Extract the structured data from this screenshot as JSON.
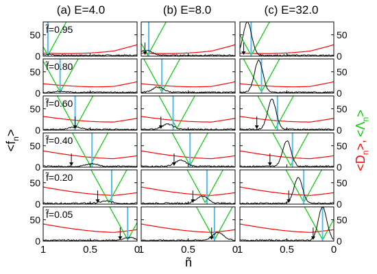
{
  "chart_data": {
    "type": "line",
    "column_titles": [
      "(a) E=4.0",
      "(b) E=8.0",
      "(c) E=32.0"
    ],
    "row_labels": [
      "f̃=0.95",
      "f̃=0.80",
      "f̃=0.60",
      "f̃=0.40",
      "f̃=0.20",
      "f̃=0.05"
    ],
    "xlabel": "ñ",
    "ylabel_left": "<f",
    "ylabel_left_sub": "n",
    "ylabel_left_close": ">",
    "ylabel_right_red_open": "<D",
    "ylabel_right_red_sub": "n",
    "ylabel_right_red_close": ">,",
    "ylabel_right_green_open": "<Λ",
    "ylabel_right_green_sub": "n",
    "ylabel_right_green_close": ">",
    "xlim": [
      1.0,
      0.0
    ],
    "ylim": [
      0,
      80
    ],
    "xticks": [
      1.0,
      0.5,
      0.0
    ],
    "xtick_labels": [
      "1",
      "0.5",
      "0"
    ],
    "yticks": [
      0,
      50
    ],
    "ytick_labels": [
      "0",
      "50"
    ],
    "series_colors": {
      "fn": "#000000",
      "Dn": "#ff0000",
      "Lambda": "#00cc00",
      "marker": "#55bbee"
    },
    "panels": [
      [
        {
          "peak_x": 0.95,
          "peak_h": 2,
          "vline_x": 0.95,
          "arrow_x": null,
          "v_x": 0.95,
          "v_y": 2,
          "red_y0": 7,
          "red_y1": 20
        },
        {
          "peak_x": 0.82,
          "peak_h": 3,
          "vline_x": 0.82,
          "arrow_x": null,
          "v_x": 0.82,
          "v_y": 3,
          "red_y0": 22,
          "red_y1": 20
        },
        {
          "peak_x": 0.66,
          "peak_h": 5,
          "vline_x": 0.66,
          "arrow_x": 0.66,
          "v_x": 0.66,
          "v_y": 4,
          "red_y0": 32,
          "red_y1": 21
        },
        {
          "peak_x": 0.48,
          "peak_h": 6,
          "vline_x": 0.48,
          "arrow_x": 0.7,
          "v_x": 0.5,
          "v_y": 4,
          "red_y0": 38,
          "red_y1": 20
        },
        {
          "peak_x": 0.33,
          "peak_h": 5,
          "vline_x": 0.27,
          "arrow_x": 0.42,
          "v_x": 0.3,
          "v_y": 4,
          "red_y0": 40,
          "red_y1": 20
        },
        {
          "peak_x": 0.08,
          "peak_h": 6,
          "vline_x": 0.1,
          "arrow_x": 0.18,
          "v_x": 0.1,
          "v_y": 3,
          "red_y0": 40,
          "red_y1": 20
        }
      ],
      [
        {
          "peak_x": 0.95,
          "peak_h": 12,
          "vline_x": 0.92,
          "arrow_x": 0.96,
          "v_x": 0.93,
          "v_y": 2,
          "red_y0": 7,
          "red_y1": 20
        },
        {
          "peak_x": 0.82,
          "peak_h": 12,
          "vline_x": 0.78,
          "arrow_x": null,
          "v_x": 0.78,
          "v_y": 3,
          "red_y0": 22,
          "red_y1": 20
        },
        {
          "peak_x": 0.72,
          "peak_h": 12,
          "vline_x": 0.66,
          "arrow_x": 0.79,
          "v_x": 0.62,
          "v_y": 4,
          "red_y0": 32,
          "red_y1": 21
        },
        {
          "peak_x": 0.58,
          "peak_h": 14,
          "vline_x": 0.48,
          "arrow_x": 0.65,
          "v_x": 0.48,
          "v_y": 4,
          "red_y0": 38,
          "red_y1": 20
        },
        {
          "peak_x": 0.35,
          "peak_h": 17,
          "vline_x": 0.3,
          "arrow_x": 0.45,
          "v_x": 0.32,
          "v_y": 4,
          "red_y0": 40,
          "red_y1": 20
        },
        {
          "peak_x": 0.18,
          "peak_h": 18,
          "vline_x": 0.22,
          "arrow_x": 0.25,
          "v_x": 0.22,
          "v_y": 3,
          "red_y0": 40,
          "red_y1": 20
        }
      ],
      [
        {
          "peak_x": 0.92,
          "peak_h": 78,
          "vline_x": 0.88,
          "arrow_x": 0.96,
          "v_x": 0.88,
          "v_y": 2,
          "red_y0": 7,
          "red_y1": 20
        },
        {
          "peak_x": 0.8,
          "peak_h": 75,
          "vline_x": 0.77,
          "arrow_x": null,
          "v_x": 0.77,
          "v_y": 3,
          "red_y0": 22,
          "red_y1": 20
        },
        {
          "peak_x": 0.66,
          "peak_h": 70,
          "vline_x": 0.6,
          "arrow_x": 0.82,
          "v_x": 0.62,
          "v_y": 4,
          "red_y0": 32,
          "red_y1": 21
        },
        {
          "peak_x": 0.5,
          "peak_h": 60,
          "vline_x": 0.44,
          "arrow_x": 0.68,
          "v_x": 0.46,
          "v_y": 4,
          "red_y0": 38,
          "red_y1": 20
        },
        {
          "peak_x": 0.38,
          "peak_h": 60,
          "vline_x": 0.32,
          "arrow_x": 0.48,
          "v_x": 0.32,
          "v_y": 4,
          "red_y0": 40,
          "red_y1": 20
        },
        {
          "peak_x": 0.12,
          "peak_h": 78,
          "vline_x": 0.12,
          "arrow_x": 0.22,
          "v_x": 0.12,
          "v_y": 3,
          "red_y0": 40,
          "red_y1": 20
        }
      ]
    ]
  }
}
